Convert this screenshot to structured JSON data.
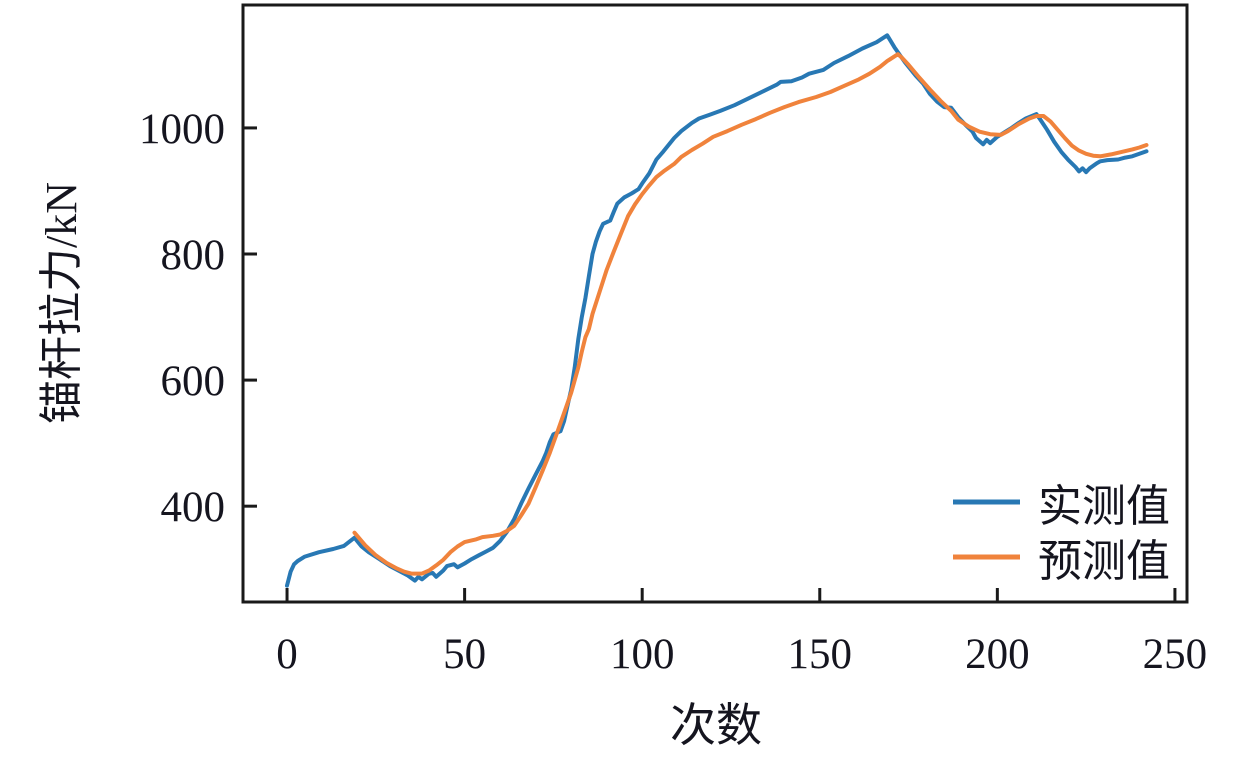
{
  "figure": {
    "background": "#ffffff"
  },
  "chart_data": {
    "type": "line",
    "title": "",
    "xlabel": "次数",
    "ylabel": "锚杆拉力/kN",
    "xlim": [
      -12.4,
      253.4
    ],
    "ylim": [
      248,
      1195
    ],
    "xticks": [
      0,
      50,
      100,
      150,
      200,
      250
    ],
    "yticks": [
      400,
      600,
      800,
      1000
    ],
    "grid": false,
    "axis_color": "#1a1a1a",
    "tick_direction": "in",
    "legend": {
      "position": "inside-lower-right",
      "frame": false,
      "entries": [
        "实测值",
        "预测值"
      ]
    },
    "series": [
      {
        "name": "实测值",
        "color": "#2878B4",
        "points": [
          [
            0,
            274
          ],
          [
            1,
            296
          ],
          [
            2,
            308
          ],
          [
            3,
            313
          ],
          [
            5,
            320
          ],
          [
            9,
            327
          ],
          [
            13,
            332
          ],
          [
            16,
            337
          ],
          [
            19,
            350
          ],
          [
            21,
            336
          ],
          [
            23,
            327
          ],
          [
            26,
            316
          ],
          [
            29,
            305
          ],
          [
            32,
            296
          ],
          [
            34,
            290
          ],
          [
            36,
            282
          ],
          [
            37,
            288
          ],
          [
            38,
            284
          ],
          [
            40,
            293
          ],
          [
            41,
            294
          ],
          [
            42,
            288
          ],
          [
            44,
            298
          ],
          [
            45,
            305
          ],
          [
            47,
            308
          ],
          [
            48,
            303
          ],
          [
            50,
            309
          ],
          [
            52,
            316
          ],
          [
            54,
            322
          ],
          [
            56,
            328
          ],
          [
            58,
            334
          ],
          [
            60,
            345
          ],
          [
            62,
            360
          ],
          [
            64,
            380
          ],
          [
            66,
            405
          ],
          [
            68,
            428
          ],
          [
            70,
            450
          ],
          [
            72,
            472
          ],
          [
            73,
            485
          ],
          [
            74,
            502
          ],
          [
            75,
            514
          ],
          [
            77,
            519
          ],
          [
            78,
            535
          ],
          [
            79,
            560
          ],
          [
            80,
            585
          ],
          [
            81,
            620
          ],
          [
            82,
            665
          ],
          [
            83,
            700
          ],
          [
            84,
            730
          ],
          [
            85,
            765
          ],
          [
            86,
            800
          ],
          [
            87,
            820
          ],
          [
            88,
            836
          ],
          [
            89,
            848
          ],
          [
            91,
            853
          ],
          [
            92,
            867
          ],
          [
            93,
            880
          ],
          [
            95,
            890
          ],
          [
            97,
            896
          ],
          [
            99,
            903
          ],
          [
            100,
            912
          ],
          [
            102,
            928
          ],
          [
            104,
            950
          ],
          [
            106,
            963
          ],
          [
            109,
            984
          ],
          [
            111,
            995
          ],
          [
            114,
            1008
          ],
          [
            116,
            1015
          ],
          [
            119,
            1021
          ],
          [
            122,
            1027
          ],
          [
            126,
            1036
          ],
          [
            130,
            1047
          ],
          [
            134,
            1058
          ],
          [
            138,
            1069
          ],
          [
            139,
            1073
          ],
          [
            142,
            1074
          ],
          [
            145,
            1080
          ],
          [
            147,
            1086
          ],
          [
            151,
            1092
          ],
          [
            154,
            1103
          ],
          [
            158,
            1114
          ],
          [
            162,
            1126
          ],
          [
            166,
            1136
          ],
          [
            169,
            1147
          ],
          [
            171,
            1128
          ],
          [
            172,
            1120
          ],
          [
            174,
            1104
          ],
          [
            177,
            1083
          ],
          [
            179,
            1071
          ],
          [
            181,
            1054
          ],
          [
            183,
            1042
          ],
          [
            185,
            1033
          ],
          [
            187,
            1032
          ],
          [
            189,
            1017
          ],
          [
            191,
            1005
          ],
          [
            193,
            994
          ],
          [
            194,
            984
          ],
          [
            196,
            974
          ],
          [
            197,
            981
          ],
          [
            198,
            976
          ],
          [
            200,
            986
          ],
          [
            202,
            993
          ],
          [
            204,
            1000
          ],
          [
            206,
            1008
          ],
          [
            208,
            1015
          ],
          [
            211,
            1022
          ],
          [
            212,
            1014
          ],
          [
            214,
            997
          ],
          [
            216,
            978
          ],
          [
            218,
            962
          ],
          [
            220,
            949
          ],
          [
            222,
            938
          ],
          [
            223,
            931
          ],
          [
            224,
            936
          ],
          [
            225,
            930
          ],
          [
            226,
            936
          ],
          [
            228,
            944
          ],
          [
            229,
            947
          ],
          [
            231,
            949
          ],
          [
            234,
            950
          ],
          [
            236,
            953
          ],
          [
            238,
            955
          ],
          [
            240,
            959
          ],
          [
            242,
            963
          ]
        ]
      },
      {
        "name": "预测值",
        "color": "#F0833C",
        "points": [
          [
            19,
            358
          ],
          [
            22,
            338
          ],
          [
            25,
            322
          ],
          [
            28,
            310
          ],
          [
            31,
            301
          ],
          [
            33,
            296
          ],
          [
            35,
            293
          ],
          [
            38,
            293
          ],
          [
            40,
            298
          ],
          [
            42,
            306
          ],
          [
            44,
            315
          ],
          [
            46,
            327
          ],
          [
            48,
            336
          ],
          [
            50,
            343
          ],
          [
            53,
            347
          ],
          [
            55,
            351
          ],
          [
            58,
            353
          ],
          [
            60,
            355
          ],
          [
            62,
            361
          ],
          [
            64,
            369
          ],
          [
            66,
            386
          ],
          [
            68,
            404
          ],
          [
            70,
            430
          ],
          [
            72,
            457
          ],
          [
            74,
            485
          ],
          [
            76,
            516
          ],
          [
            78,
            548
          ],
          [
            80,
            580
          ],
          [
            82,
            620
          ],
          [
            83,
            645
          ],
          [
            84,
            668
          ],
          [
            85,
            681
          ],
          [
            86,
            705
          ],
          [
            88,
            740
          ],
          [
            90,
            775
          ],
          [
            92,
            804
          ],
          [
            94,
            832
          ],
          [
            96,
            860
          ],
          [
            98,
            879
          ],
          [
            100,
            895
          ],
          [
            102,
            909
          ],
          [
            104,
            922
          ],
          [
            106,
            931
          ],
          [
            109,
            943
          ],
          [
            111,
            954
          ],
          [
            114,
            965
          ],
          [
            117,
            975
          ],
          [
            120,
            986
          ],
          [
            124,
            995
          ],
          [
            128,
            1005
          ],
          [
            132,
            1014
          ],
          [
            136,
            1024
          ],
          [
            140,
            1033
          ],
          [
            144,
            1041
          ],
          [
            149,
            1049
          ],
          [
            153,
            1057
          ],
          [
            157,
            1067
          ],
          [
            161,
            1077
          ],
          [
            164,
            1086
          ],
          [
            167,
            1097
          ],
          [
            169,
            1106
          ],
          [
            172,
            1117
          ],
          [
            173,
            1112
          ],
          [
            175,
            1100
          ],
          [
            178,
            1080
          ],
          [
            181,
            1061
          ],
          [
            184,
            1043
          ],
          [
            187,
            1027
          ],
          [
            189,
            1013
          ],
          [
            192,
            1002
          ],
          [
            195,
            994
          ],
          [
            198,
            990
          ],
          [
            201,
            989
          ],
          [
            203,
            995
          ],
          [
            206,
            1006
          ],
          [
            209,
            1015
          ],
          [
            211,
            1019
          ],
          [
            213,
            1019
          ],
          [
            215,
            1010
          ],
          [
            217,
            997
          ],
          [
            219,
            984
          ],
          [
            221,
            972
          ],
          [
            223,
            964
          ],
          [
            225,
            959
          ],
          [
            227,
            956
          ],
          [
            229,
            955
          ],
          [
            232,
            958
          ],
          [
            235,
            962
          ],
          [
            238,
            966
          ],
          [
            240,
            969
          ],
          [
            242,
            973
          ]
        ]
      }
    ]
  }
}
